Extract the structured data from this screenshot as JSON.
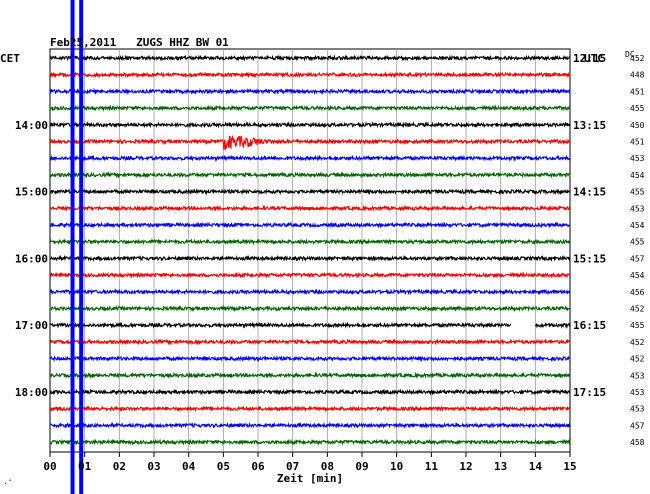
{
  "title": "Feb25,2011   ZUGS HHZ BW 01",
  "left_axis_label": "CET",
  "right_axis_label": "UTC",
  "dc_label": "DC",
  "footer_mark": "·̂",
  "chart_data": {
    "type": "line",
    "title": "Feb25,2011   ZUGS HHZ BW 01",
    "xlabel": "Zeit [min]",
    "ylabel": "",
    "xlim": [
      0,
      15
    ],
    "x_ticks": [
      "00",
      "01",
      "02",
      "03",
      "04",
      "05",
      "06",
      "07",
      "08",
      "09",
      "10",
      "11",
      "12",
      "13",
      "14",
      "15"
    ],
    "trace_count": 24,
    "trace_interval_min": 15,
    "trace_colors": [
      "#000000",
      "#ff0000",
      "#0000ff",
      "#006400"
    ],
    "left_time_labels": [
      {
        "trace_index": 4,
        "label": "14:00"
      },
      {
        "trace_index": 8,
        "label": "15:00"
      },
      {
        "trace_index": 12,
        "label": "16:00"
      },
      {
        "trace_index": 16,
        "label": "17:00"
      },
      {
        "trace_index": 20,
        "label": "18:00"
      }
    ],
    "right_time_labels": [
      {
        "trace_index": 0,
        "label": "12:15"
      },
      {
        "trace_index": 4,
        "label": "13:15"
      },
      {
        "trace_index": 8,
        "label": "14:15"
      },
      {
        "trace_index": 12,
        "label": "15:15"
      },
      {
        "trace_index": 16,
        "label": "16:15"
      },
      {
        "trace_index": 20,
        "label": "17:15"
      }
    ],
    "dc_values": [
      "452",
      "448",
      "451",
      "455",
      "450",
      "451",
      "453",
      "454",
      "455",
      "453",
      "454",
      "455",
      "457",
      "454",
      "456",
      "452",
      "455",
      "452",
      "452",
      "453",
      "453",
      "453",
      "457",
      "458"
    ],
    "events": [
      {
        "trace_index": 5,
        "start_min": 5.0,
        "end_min": 7.0,
        "amplitude": "large"
      }
    ],
    "gaps": [
      {
        "trace_index": 16,
        "start_min": 13.3,
        "end_min": 14.0
      }
    ],
    "markers": [
      {
        "x_min": 0.65,
        "color": "#0000ff"
      },
      {
        "x_min": 0.9,
        "color": "#0000ff"
      }
    ]
  }
}
